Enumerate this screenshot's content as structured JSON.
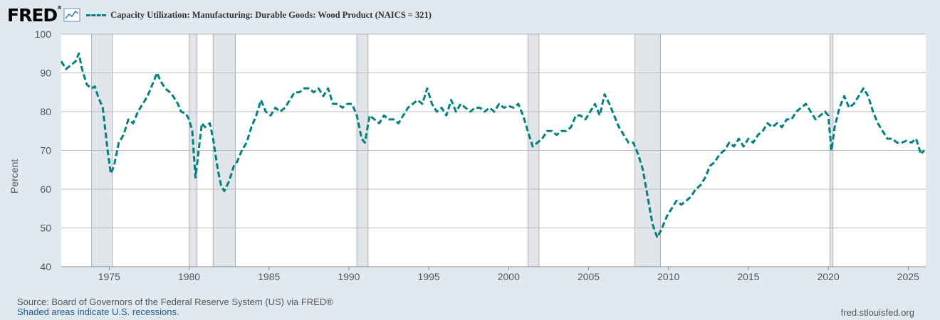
{
  "header": {
    "logo": "FRED",
    "logo_mark": "®",
    "graph_icon": "line-graph-icon"
  },
  "footer": {
    "source": "Source: Board of Governors of the Federal Reserve System (US) via FRED®",
    "note": "Shaded areas indicate U.S. recessions.",
    "url": "fred.stlouisfed.org"
  },
  "colors": {
    "series": "#008080",
    "background": "#e1e9f0",
    "plot": "#ffffff",
    "grid": "#bbbbbb",
    "recession": "#e1e5e9"
  },
  "chart_data": {
    "type": "line",
    "title": "Capacity Utilization: Manufacturing: Durable Goods: Wood Product (NAICS = 321)",
    "xlabel": "",
    "ylabel": "Percent",
    "xlim": [
      1972.0,
      2026.1
    ],
    "ylim": [
      40,
      100
    ],
    "yticks": [
      40,
      50,
      60,
      70,
      80,
      90,
      100
    ],
    "xticks": [
      1975,
      1980,
      1985,
      1990,
      1995,
      2000,
      2005,
      2010,
      2015,
      2020,
      2025
    ],
    "grid": true,
    "legend": "top-left",
    "line_style": "dashed",
    "recessions": [
      [
        1973.9,
        1975.2
      ],
      [
        1980.0,
        1980.5
      ],
      [
        1981.5,
        1982.9
      ],
      [
        1990.5,
        1991.2
      ],
      [
        2001.2,
        2001.9
      ],
      [
        2007.9,
        2009.5
      ],
      [
        2020.1,
        2020.3
      ]
    ],
    "series": [
      {
        "points": [
          [
            1972.0,
            93
          ],
          [
            1972.3,
            91
          ],
          [
            1972.6,
            92
          ],
          [
            1972.9,
            93
          ],
          [
            1973.1,
            95
          ],
          [
            1973.3,
            91
          ],
          [
            1973.6,
            87
          ],
          [
            1973.9,
            86
          ],
          [
            1974.1,
            86.5
          ],
          [
            1974.3,
            84
          ],
          [
            1974.6,
            81
          ],
          [
            1974.9,
            70
          ],
          [
            1975.1,
            64
          ],
          [
            1975.3,
            66
          ],
          [
            1975.6,
            72
          ],
          [
            1975.9,
            74
          ],
          [
            1976.2,
            78
          ],
          [
            1976.5,
            77
          ],
          [
            1976.8,
            80
          ],
          [
            1977.1,
            82
          ],
          [
            1977.4,
            84
          ],
          [
            1977.7,
            87
          ],
          [
            1978.0,
            90
          ],
          [
            1978.2,
            88
          ],
          [
            1978.5,
            86
          ],
          [
            1978.8,
            85
          ],
          [
            1979.0,
            84
          ],
          [
            1979.3,
            82
          ],
          [
            1979.5,
            80
          ],
          [
            1979.8,
            79.5
          ],
          [
            1980.0,
            78
          ],
          [
            1980.2,
            75
          ],
          [
            1980.4,
            63
          ],
          [
            1980.6,
            70
          ],
          [
            1980.8,
            77
          ],
          [
            1981.0,
            76
          ],
          [
            1981.3,
            77
          ],
          [
            1981.5,
            73
          ],
          [
            1981.8,
            65
          ],
          [
            1982.0,
            61
          ],
          [
            1982.2,
            59.5
          ],
          [
            1982.5,
            62
          ],
          [
            1982.8,
            66
          ],
          [
            1983.0,
            67
          ],
          [
            1983.3,
            70
          ],
          [
            1983.6,
            72
          ],
          [
            1983.9,
            76
          ],
          [
            1984.2,
            79
          ],
          [
            1984.5,
            83
          ],
          [
            1984.8,
            80
          ],
          [
            1985.1,
            79
          ],
          [
            1985.4,
            81
          ],
          [
            1985.7,
            80
          ],
          [
            1986.0,
            81
          ],
          [
            1986.3,
            83
          ],
          [
            1986.6,
            85
          ],
          [
            1986.9,
            85
          ],
          [
            1987.2,
            86
          ],
          [
            1987.5,
            86
          ],
          [
            1987.8,
            85
          ],
          [
            1988.1,
            86
          ],
          [
            1988.4,
            84
          ],
          [
            1988.7,
            86
          ],
          [
            1989.0,
            82
          ],
          [
            1989.3,
            82
          ],
          [
            1989.6,
            81
          ],
          [
            1989.9,
            82
          ],
          [
            1990.2,
            82
          ],
          [
            1990.5,
            79
          ],
          [
            1990.8,
            73
          ],
          [
            1991.0,
            72
          ],
          [
            1991.3,
            79
          ],
          [
            1991.6,
            78
          ],
          [
            1991.9,
            77
          ],
          [
            1992.2,
            79
          ],
          [
            1992.5,
            78
          ],
          [
            1992.8,
            78
          ],
          [
            1993.1,
            77
          ],
          [
            1993.4,
            79
          ],
          [
            1993.7,
            81
          ],
          [
            1994.0,
            82
          ],
          [
            1994.3,
            83
          ],
          [
            1994.6,
            82
          ],
          [
            1994.9,
            86
          ],
          [
            1995.2,
            82
          ],
          [
            1995.5,
            80
          ],
          [
            1995.8,
            81
          ],
          [
            1996.1,
            79
          ],
          [
            1996.4,
            83
          ],
          [
            1996.7,
            80
          ],
          [
            1997.0,
            82
          ],
          [
            1997.3,
            81
          ],
          [
            1997.6,
            80
          ],
          [
            1997.9,
            81
          ],
          [
            1998.2,
            81
          ],
          [
            1998.5,
            80
          ],
          [
            1998.8,
            81
          ],
          [
            1999.1,
            80
          ],
          [
            1999.4,
            82
          ],
          [
            1999.7,
            81
          ],
          [
            2000.0,
            81.5
          ],
          [
            2000.3,
            81
          ],
          [
            2000.6,
            82
          ],
          [
            2000.9,
            79
          ],
          [
            2001.2,
            75
          ],
          [
            2001.5,
            71
          ],
          [
            2001.8,
            72
          ],
          [
            2002.1,
            73
          ],
          [
            2002.4,
            75
          ],
          [
            2002.7,
            75
          ],
          [
            2003.0,
            74
          ],
          [
            2003.3,
            75
          ],
          [
            2003.6,
            75
          ],
          [
            2003.9,
            76
          ],
          [
            2004.2,
            79
          ],
          [
            2004.5,
            79
          ],
          [
            2004.8,
            78
          ],
          [
            2005.1,
            80
          ],
          [
            2005.4,
            82
          ],
          [
            2005.7,
            79
          ],
          [
            2006.0,
            84.5
          ],
          [
            2006.3,
            82
          ],
          [
            2006.6,
            79
          ],
          [
            2006.9,
            76
          ],
          [
            2007.2,
            74
          ],
          [
            2007.5,
            72
          ],
          [
            2007.8,
            72
          ],
          [
            2008.1,
            69
          ],
          [
            2008.4,
            65
          ],
          [
            2008.7,
            58
          ],
          [
            2009.0,
            51
          ],
          [
            2009.3,
            47.5
          ],
          [
            2009.6,
            50
          ],
          [
            2009.9,
            53
          ],
          [
            2010.2,
            55
          ],
          [
            2010.5,
            57
          ],
          [
            2010.8,
            56
          ],
          [
            2011.1,
            57
          ],
          [
            2011.4,
            58
          ],
          [
            2011.7,
            60
          ],
          [
            2012.0,
            61
          ],
          [
            2012.3,
            63
          ],
          [
            2012.6,
            66
          ],
          [
            2012.9,
            67
          ],
          [
            2013.2,
            69
          ],
          [
            2013.5,
            70
          ],
          [
            2013.8,
            72
          ],
          [
            2014.1,
            71
          ],
          [
            2014.4,
            73
          ],
          [
            2014.7,
            71
          ],
          [
            2015.0,
            73
          ],
          [
            2015.3,
            72
          ],
          [
            2015.6,
            74
          ],
          [
            2015.9,
            75
          ],
          [
            2016.2,
            77
          ],
          [
            2016.5,
            76
          ],
          [
            2016.8,
            77
          ],
          [
            2017.1,
            76
          ],
          [
            2017.4,
            78
          ],
          [
            2017.7,
            78
          ],
          [
            2018.0,
            80
          ],
          [
            2018.3,
            81
          ],
          [
            2018.6,
            82
          ],
          [
            2018.9,
            80
          ],
          [
            2019.2,
            78
          ],
          [
            2019.5,
            79
          ],
          [
            2019.8,
            80
          ],
          [
            2020.0,
            79
          ],
          [
            2020.2,
            70
          ],
          [
            2020.4,
            76
          ],
          [
            2020.7,
            81
          ],
          [
            2021.0,
            84
          ],
          [
            2021.3,
            81
          ],
          [
            2021.6,
            82
          ],
          [
            2021.9,
            84
          ],
          [
            2022.2,
            86
          ],
          [
            2022.5,
            84
          ],
          [
            2022.8,
            80
          ],
          [
            2023.1,
            77
          ],
          [
            2023.4,
            75
          ],
          [
            2023.7,
            73
          ],
          [
            2024.0,
            73
          ],
          [
            2024.3,
            72
          ],
          [
            2024.6,
            72
          ],
          [
            2024.9,
            72.5
          ],
          [
            2025.2,
            72
          ],
          [
            2025.5,
            73
          ],
          [
            2025.8,
            69
          ],
          [
            2026.0,
            70
          ]
        ]
      }
    ]
  }
}
